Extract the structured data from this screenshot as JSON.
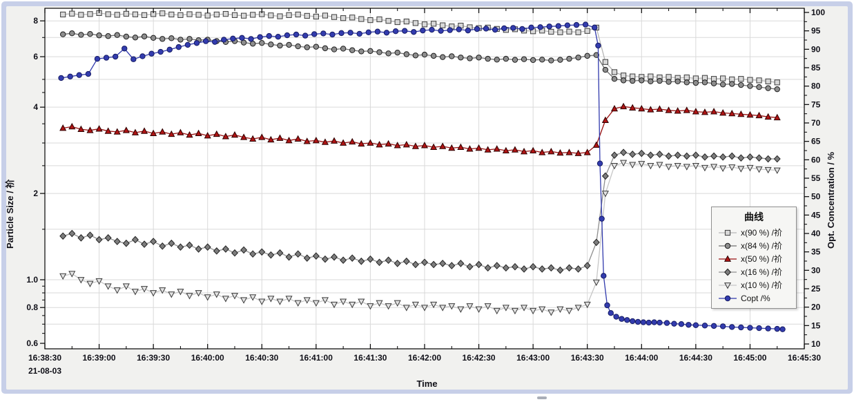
{
  "window": {
    "bottom_strip": true
  },
  "chart_data": {
    "type": "line",
    "title": "",
    "xlabel": "Time",
    "x_axis": {
      "start_label": "16:38:30",
      "end_label": "16:45:30",
      "date_label": "21-08-03",
      "tick_labels": [
        "16:38:30",
        "16:39:00",
        "16:39:30",
        "16:40:00",
        "16:40:30",
        "16:41:00",
        "16:41:30",
        "16:42:00",
        "16:42:30",
        "16:43:00",
        "16:43:30",
        "16:44:00",
        "16:44:30",
        "16:45:00",
        "16:45:30"
      ],
      "tick_interval_seconds": 30,
      "minor_tick_seconds": 15,
      "total_seconds": 420
    },
    "y_left": {
      "label": "Particle Size / 祄",
      "scale": "log",
      "range": [
        0.574,
        8.9
      ],
      "major_ticks": [
        {
          "value": 8,
          "label": "8"
        },
        {
          "value": 6,
          "label": "6"
        },
        {
          "value": 4,
          "label": "4"
        },
        {
          "value": 2,
          "label": "2"
        },
        {
          "value": 1,
          "label": "1.0"
        },
        {
          "value": 0.8,
          "label": "0.8"
        },
        {
          "value": 0.6,
          "label": "0.6"
        }
      ],
      "minor_ticks": [
        0.65,
        0.7,
        0.75,
        0.85,
        0.9,
        0.95,
        1.5,
        2.5,
        3,
        3.5,
        4.5,
        5,
        7,
        9
      ],
      "gridline_values": [
        0.7,
        0.8,
        0.9,
        1,
        1.5,
        2,
        2.5,
        3,
        4,
        5,
        6,
        7,
        8
      ]
    },
    "y_right": {
      "label": "Opt. Concentration / %",
      "scale": "linear",
      "min": 10,
      "max": 100,
      "tick_step": 5,
      "minor_tick_step": 2.5
    },
    "legend": {
      "title": "曲线",
      "position": "right-middle"
    },
    "grid": true,
    "series": [
      {
        "name": "x(90 %) /祄",
        "axis": "left",
        "marker": "square",
        "fill": "#d8d8d8",
        "stroke": "#3c3c3c",
        "line_color": "#b6b6b6",
        "t0": 10,
        "dt": 5,
        "values": [
          8.42,
          8.48,
          8.4,
          8.45,
          8.52,
          8.44,
          8.4,
          8.47,
          8.43,
          8.38,
          8.45,
          8.5,
          8.42,
          8.38,
          8.44,
          8.4,
          8.35,
          8.42,
          8.46,
          8.38,
          8.34,
          8.4,
          8.44,
          8.36,
          8.3,
          8.38,
          8.42,
          8.33,
          8.28,
          8.35,
          8.25,
          8.18,
          8.22,
          8.12,
          8.05,
          8.1,
          8.0,
          7.92,
          7.96,
          7.86,
          7.78,
          7.82,
          7.72,
          7.65,
          7.7,
          7.6,
          7.55,
          7.58,
          7.5,
          7.44,
          7.48,
          7.4,
          7.36,
          7.4,
          7.33,
          7.3,
          7.34,
          7.3,
          7.38,
          7.58,
          5.75,
          5.3,
          5.16,
          5.12,
          5.1,
          5.12,
          5.08,
          5.1,
          5.06,
          5.08,
          5.04,
          5.06,
          5.02,
          5.04,
          5.0,
          5.02,
          4.98,
          4.96,
          4.92,
          4.88
        ]
      },
      {
        "name": "x(84 %) /祄",
        "axis": "left",
        "marker": "circle",
        "fill": "#8e8e8e",
        "stroke": "#1c1c1c",
        "line_color": "#6f6f6f",
        "t0": 10,
        "dt": 5,
        "values": [
          7.18,
          7.24,
          7.15,
          7.2,
          7.12,
          7.08,
          7.14,
          7.05,
          7.0,
          7.06,
          6.98,
          6.92,
          6.96,
          6.88,
          6.92,
          6.85,
          6.88,
          6.8,
          6.75,
          6.8,
          6.72,
          6.66,
          6.7,
          6.62,
          6.56,
          6.6,
          6.52,
          6.47,
          6.5,
          6.42,
          6.36,
          6.4,
          6.32,
          6.26,
          6.28,
          6.22,
          6.16,
          6.2,
          6.12,
          6.06,
          6.1,
          6.04,
          5.98,
          6.02,
          5.96,
          5.92,
          5.96,
          5.9,
          5.86,
          5.9,
          5.85,
          5.88,
          5.84,
          5.86,
          5.82,
          5.85,
          5.9,
          5.96,
          6.04,
          6.08,
          5.4,
          5.02,
          4.96,
          4.94,
          4.96,
          4.92,
          4.94,
          4.9,
          4.92,
          4.88,
          4.86,
          4.88,
          4.84,
          4.8,
          4.82,
          4.78,
          4.74,
          4.7,
          4.66,
          4.62
        ]
      },
      {
        "name": "x(50 %) /祄",
        "axis": "left",
        "marker": "triangle-up",
        "fill": "#b01414",
        "stroke": "#2c0000",
        "line_color": "#991111",
        "t0": 10,
        "dt": 5,
        "values": [
          3.38,
          3.42,
          3.35,
          3.32,
          3.36,
          3.3,
          3.28,
          3.32,
          3.26,
          3.3,
          3.24,
          3.28,
          3.22,
          3.26,
          3.2,
          3.24,
          3.18,
          3.22,
          3.16,
          3.2,
          3.14,
          3.1,
          3.14,
          3.08,
          3.12,
          3.06,
          3.1,
          3.04,
          3.06,
          3.02,
          3.05,
          3.0,
          3.03,
          2.98,
          3.0,
          2.96,
          2.98,
          2.94,
          2.96,
          2.92,
          2.94,
          2.9,
          2.92,
          2.88,
          2.9,
          2.86,
          2.88,
          2.84,
          2.86,
          2.82,
          2.84,
          2.8,
          2.82,
          2.78,
          2.8,
          2.77,
          2.78,
          2.76,
          2.78,
          2.95,
          3.6,
          3.95,
          4.02,
          3.98,
          3.95,
          3.92,
          3.94,
          3.9,
          3.88,
          3.9,
          3.86,
          3.84,
          3.86,
          3.82,
          3.8,
          3.78,
          3.76,
          3.74,
          3.7,
          3.68
        ]
      },
      {
        "name": "x(16 %) /祄",
        "axis": "left",
        "marker": "diamond",
        "fill": "#7d7d7d",
        "stroke": "#222222",
        "line_color": "#8f8f8f",
        "t0": 10,
        "dt": 5,
        "values": [
          1.42,
          1.45,
          1.4,
          1.43,
          1.38,
          1.4,
          1.36,
          1.34,
          1.38,
          1.33,
          1.36,
          1.31,
          1.34,
          1.3,
          1.32,
          1.28,
          1.3,
          1.26,
          1.28,
          1.24,
          1.27,
          1.23,
          1.25,
          1.22,
          1.24,
          1.2,
          1.23,
          1.19,
          1.21,
          1.18,
          1.2,
          1.17,
          1.19,
          1.16,
          1.18,
          1.15,
          1.17,
          1.14,
          1.16,
          1.13,
          1.15,
          1.13,
          1.14,
          1.12,
          1.14,
          1.11,
          1.13,
          1.1,
          1.12,
          1.1,
          1.11,
          1.09,
          1.11,
          1.09,
          1.1,
          1.08,
          1.1,
          1.09,
          1.12,
          1.35,
          2.3,
          2.72,
          2.78,
          2.74,
          2.76,
          2.72,
          2.74,
          2.7,
          2.72,
          2.7,
          2.72,
          2.68,
          2.7,
          2.68,
          2.7,
          2.66,
          2.68,
          2.66,
          2.64,
          2.64
        ]
      },
      {
        "name": "x(10 %) /祄",
        "axis": "left",
        "marker": "triangle-down",
        "fill": "#e2e2e2",
        "stroke": "#3a3a3a",
        "line_color": "#c6c6c6",
        "t0": 10,
        "dt": 5,
        "values": [
          1.03,
          1.05,
          1.0,
          0.97,
          0.99,
          0.95,
          0.92,
          0.95,
          0.91,
          0.93,
          0.9,
          0.92,
          0.89,
          0.91,
          0.88,
          0.9,
          0.87,
          0.89,
          0.86,
          0.88,
          0.85,
          0.87,
          0.84,
          0.86,
          0.84,
          0.86,
          0.83,
          0.85,
          0.83,
          0.85,
          0.82,
          0.84,
          0.82,
          0.84,
          0.81,
          0.83,
          0.81,
          0.83,
          0.8,
          0.82,
          0.8,
          0.82,
          0.8,
          0.81,
          0.79,
          0.81,
          0.79,
          0.81,
          0.78,
          0.8,
          0.78,
          0.8,
          0.78,
          0.79,
          0.77,
          0.79,
          0.78,
          0.8,
          0.82,
          0.98,
          2.0,
          2.5,
          2.56,
          2.52,
          2.54,
          2.5,
          2.52,
          2.48,
          2.5,
          2.48,
          2.5,
          2.46,
          2.48,
          2.45,
          2.47,
          2.44,
          2.46,
          2.43,
          2.42,
          2.41
        ]
      },
      {
        "name": "Copt /%",
        "axis": "right",
        "marker": "circle",
        "fill": "#333cae",
        "stroke": "#141a62",
        "line_color": "#2f38ac",
        "points": [
          [
            9,
            82.2
          ],
          [
            14,
            82.6
          ],
          [
            19,
            83.0
          ],
          [
            24,
            83.3
          ],
          [
            29,
            87.4
          ],
          [
            34,
            87.7
          ],
          [
            39,
            88.0
          ],
          [
            44,
            90.2
          ],
          [
            49,
            87.3
          ],
          [
            54,
            88.1
          ],
          [
            59,
            88.8
          ],
          [
            64,
            89.3
          ],
          [
            69,
            89.9
          ],
          [
            74,
            90.6
          ],
          [
            79,
            91.2
          ],
          [
            84,
            91.7
          ],
          [
            89,
            92.2
          ],
          [
            94,
            92.0
          ],
          [
            99,
            92.6
          ],
          [
            104,
            92.9
          ],
          [
            109,
            93.1
          ],
          [
            114,
            92.8
          ],
          [
            119,
            93.3
          ],
          [
            124,
            93.6
          ],
          [
            129,
            93.4
          ],
          [
            134,
            93.8
          ],
          [
            139,
            94.0
          ],
          [
            144,
            93.7
          ],
          [
            149,
            94.1
          ],
          [
            154,
            94.3
          ],
          [
            159,
            94.0
          ],
          [
            164,
            94.4
          ],
          [
            169,
            94.5
          ],
          [
            174,
            94.2
          ],
          [
            179,
            94.6
          ],
          [
            184,
            94.8
          ],
          [
            189,
            94.5
          ],
          [
            194,
            94.9
          ],
          [
            199,
            95.0
          ],
          [
            204,
            94.7
          ],
          [
            209,
            95.1
          ],
          [
            214,
            95.3
          ],
          [
            219,
            95.0
          ],
          [
            224,
            95.2
          ],
          [
            229,
            95.4
          ],
          [
            234,
            95.1
          ],
          [
            239,
            95.5
          ],
          [
            244,
            95.6
          ],
          [
            249,
            95.3
          ],
          [
            254,
            95.7
          ],
          [
            259,
            95.8
          ],
          [
            264,
            95.5
          ],
          [
            269,
            95.9
          ],
          [
            274,
            96.0
          ],
          [
            279,
            96.2
          ],
          [
            284,
            96.3
          ],
          [
            289,
            96.5
          ],
          [
            294,
            96.6
          ],
          [
            299,
            96.7
          ],
          [
            304,
            95.9
          ],
          [
            306,
            91.0
          ],
          [
            307,
            59.0
          ],
          [
            308,
            44.0
          ],
          [
            309,
            28.5
          ],
          [
            311,
            20.5
          ],
          [
            313,
            18.4
          ],
          [
            316,
            17.4
          ],
          [
            319,
            16.8
          ],
          [
            322,
            16.5
          ],
          [
            325,
            16.2
          ],
          [
            328,
            16.0
          ],
          [
            331,
            15.9
          ],
          [
            334,
            15.8
          ],
          [
            337,
            15.9
          ],
          [
            340,
            15.8
          ],
          [
            344,
            15.7
          ],
          [
            348,
            15.5
          ],
          [
            352,
            15.4
          ],
          [
            356,
            15.2
          ],
          [
            360,
            15.1
          ],
          [
            365,
            15.0
          ],
          [
            370,
            14.9
          ],
          [
            375,
            14.8
          ],
          [
            380,
            14.6
          ],
          [
            385,
            14.5
          ],
          [
            390,
            14.4
          ],
          [
            395,
            14.3
          ],
          [
            400,
            14.2
          ],
          [
            405,
            14.1
          ],
          [
            408,
            14.0
          ]
        ]
      }
    ]
  },
  "colors": {
    "frame": "#c7cfe8",
    "panel": "#f1f1ef",
    "plot_bg": "#ffffff",
    "grid": "#d9d9d9",
    "tick_text": "#101018",
    "red_series": "#b01414",
    "blue_series": "#333cae"
  }
}
